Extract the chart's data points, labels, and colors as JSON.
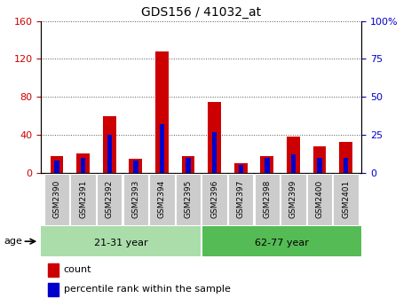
{
  "title": "GDS156 / 41032_at",
  "samples": [
    "GSM2390",
    "GSM2391",
    "GSM2392",
    "GSM2393",
    "GSM2394",
    "GSM2395",
    "GSM2396",
    "GSM2397",
    "GSM2398",
    "GSM2399",
    "GSM2400",
    "GSM2401"
  ],
  "count": [
    18,
    20,
    60,
    15,
    128,
    18,
    75,
    10,
    18,
    38,
    28,
    33
  ],
  "percentile": [
    8,
    10,
    25,
    8,
    32,
    10,
    27,
    5,
    10,
    12,
    10,
    10
  ],
  "ylim_left": [
    0,
    160
  ],
  "ylim_right": [
    0,
    100
  ],
  "yticks_left": [
    0,
    40,
    80,
    120,
    160
  ],
  "yticks_right": [
    0,
    25,
    50,
    75,
    100
  ],
  "bar_color_red": "#cc0000",
  "bar_color_blue": "#0000cc",
  "group1_label": "21-31 year",
  "group2_label": "62-77 year",
  "age_label": "age",
  "legend1": "count",
  "legend2": "percentile rank within the sample",
  "group1_color": "#aaddaa",
  "group2_color": "#55bb55",
  "tick_label_color_left": "#cc0000",
  "tick_label_color_right": "#0000cc",
  "title_fontsize": 10,
  "plot_bg": "#ffffff",
  "sample_box_color": "#cccccc"
}
